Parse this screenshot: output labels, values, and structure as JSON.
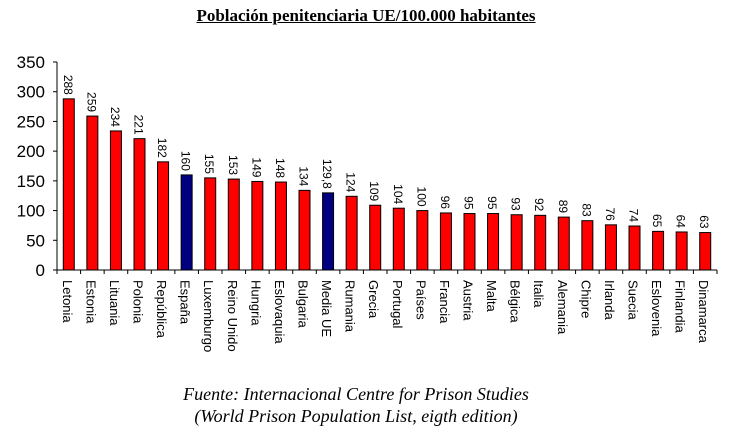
{
  "chart_data": {
    "type": "bar",
    "title": "Población penitenciaria UE/100.000 habitantes",
    "xlabel": "",
    "ylabel": "",
    "ylim": [
      0,
      350
    ],
    "yticks": [
      0,
      50,
      100,
      150,
      200,
      250,
      300,
      350
    ],
    "grid": false,
    "legend": "none",
    "categories": [
      "Letonia",
      "Estonia",
      "Lituania",
      "Polonia",
      "República",
      "España",
      "Luxemburgo",
      "Reino Unido",
      "Hungria",
      "Eslovaquia",
      "Bulgaria",
      "Media UE",
      "Rumania",
      "Grecia",
      "Portugal",
      "Países",
      "Francia",
      "Austria",
      "Malta",
      "Bélgica",
      "Italia",
      "Alemania",
      "Chipre",
      "Irlanda",
      "Suecia",
      "Eslovenia",
      "Finlandia",
      "Dinamarca"
    ],
    "values": [
      288,
      259,
      234,
      221,
      182,
      160,
      155,
      153,
      149,
      148,
      134,
      129.8,
      124,
      109,
      104,
      100,
      96,
      95,
      95,
      93,
      92,
      89,
      83,
      76,
      74,
      65,
      64,
      63
    ],
    "value_labels": [
      "288",
      "259",
      "234",
      "221",
      "182",
      "160",
      "155",
      "153",
      "149",
      "148",
      "134",
      "129,8",
      "124",
      "109",
      "104",
      "100",
      "96",
      "95",
      "95",
      "93",
      "92",
      "89",
      "83",
      "76",
      "74",
      "65",
      "64",
      "63"
    ],
    "colors": {
      "default": "#ff0000",
      "highlight": "#000080",
      "border": "#000000"
    },
    "highlighted": [
      "España",
      "Media UE"
    ]
  },
  "source": {
    "line1": "Fuente: Internacional Centre for Prison Studies",
    "line2": "(World Prison Population List, eigth edition)"
  }
}
